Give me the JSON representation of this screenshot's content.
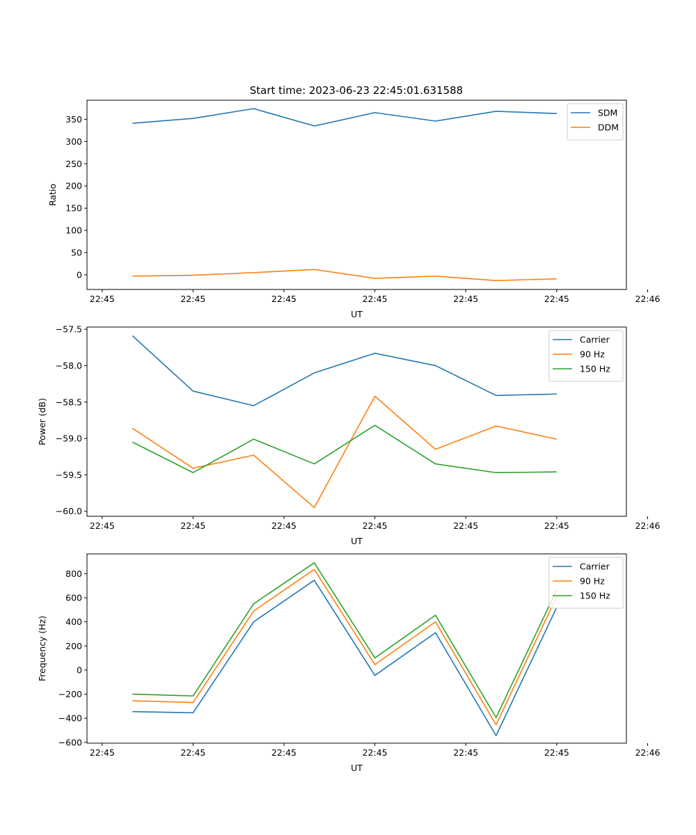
{
  "figure_title": "Start time: 2023-06-23 22:45:01.631588",
  "colors": {
    "blue": "#1f77b4",
    "orange": "#ff7f0e",
    "green": "#2ca02c"
  },
  "chart_data": [
    {
      "type": "line",
      "title": "Start time: 2023-06-23 22:45:01.631588",
      "xlabel": "UT",
      "ylabel": "Ratio",
      "x": [
        1,
        2,
        3,
        4,
        5,
        6,
        7,
        8
      ],
      "xlim": [
        0.25,
        9.15
      ],
      "x_ticks": [
        0.5,
        2.0,
        3.5,
        5.0,
        6.5,
        8.0,
        9.5
      ],
      "x_tick_labels": [
        "22:45",
        "22:45",
        "22:45",
        "22:45",
        "22:45",
        "22:45",
        "22:46"
      ],
      "ylim": [
        -33,
        393
      ],
      "y_ticks": [
        0,
        50,
        100,
        150,
        200,
        250,
        300,
        350
      ],
      "y_tick_labels": [
        "0",
        "50",
        "100",
        "150",
        "200",
        "250",
        "300",
        "350"
      ],
      "legend_position": "top-right",
      "series": [
        {
          "name": "SDM",
          "color": "#1f77b4",
          "values": [
            341,
            352,
            374,
            335,
            365,
            346,
            368,
            363
          ]
        },
        {
          "name": "DDM",
          "color": "#ff7f0e",
          "values": [
            -3,
            -1,
            5,
            12,
            -8,
            -3,
            -13,
            -9
          ]
        }
      ]
    },
    {
      "type": "line",
      "title": "",
      "xlabel": "UT",
      "ylabel": "Power (dB)",
      "x": [
        1,
        2,
        3,
        4,
        5,
        6,
        7,
        8
      ],
      "xlim": [
        0.25,
        9.15
      ],
      "x_ticks": [
        0.5,
        2.0,
        3.5,
        5.0,
        6.5,
        8.0,
        9.5
      ],
      "x_tick_labels": [
        "22:45",
        "22:45",
        "22:45",
        "22:45",
        "22:45",
        "22:45",
        "22:46"
      ],
      "ylim": [
        -60.07,
        -57.47
      ],
      "y_ticks": [
        -60.0,
        -59.5,
        -59.0,
        -58.5,
        -58.0,
        -57.5
      ],
      "y_tick_labels": [
        "−60.0",
        "−59.5",
        "−59.0",
        "−58.5",
        "−58.0",
        "−57.5"
      ],
      "legend_position": "top-right",
      "series": [
        {
          "name": "Carrier",
          "color": "#1f77b4",
          "values": [
            -57.59,
            -58.35,
            -58.55,
            -58.1,
            -57.83,
            -58.0,
            -58.41,
            -58.39
          ]
        },
        {
          "name": "90 Hz",
          "color": "#ff7f0e",
          "values": [
            -58.86,
            -59.41,
            -59.23,
            -59.95,
            -58.42,
            -59.15,
            -58.83,
            -59.01
          ]
        },
        {
          "name": "150 Hz",
          "color": "#2ca02c",
          "values": [
            -59.05,
            -59.47,
            -59.01,
            -59.35,
            -58.82,
            -59.35,
            -59.47,
            -59.46
          ]
        }
      ]
    },
    {
      "type": "line",
      "title": "",
      "xlabel": "UT",
      "ylabel": "Frequency (Hz)",
      "x": [
        1,
        2,
        3,
        4,
        5,
        6,
        7,
        8
      ],
      "xlim": [
        0.25,
        9.15
      ],
      "x_ticks": [
        0.5,
        2.0,
        3.5,
        5.0,
        6.5,
        8.0,
        9.5
      ],
      "x_tick_labels": [
        "22:45",
        "22:45",
        "22:45",
        "22:45",
        "22:45",
        "22:45",
        "22:46"
      ],
      "ylim": [
        -607,
        964
      ],
      "y_ticks": [
        -600,
        -400,
        -200,
        0,
        200,
        400,
        600,
        800
      ],
      "y_tick_labels": [
        "−600",
        "−400",
        "−200",
        "0",
        "200",
        "400",
        "600",
        "800"
      ],
      "legend_position": "top-right",
      "series": [
        {
          "name": "Carrier",
          "color": "#1f77b4",
          "values": [
            -345,
            -355,
            400,
            745,
            -45,
            310,
            -545,
            520
          ]
        },
        {
          "name": "90 Hz",
          "color": "#ff7f0e",
          "values": [
            -255,
            -270,
            490,
            835,
            45,
            400,
            -455,
            610
          ]
        },
        {
          "name": "150 Hz",
          "color": "#2ca02c",
          "values": [
            -200,
            -215,
            550,
            890,
            100,
            455,
            -395,
            665
          ]
        }
      ]
    }
  ]
}
